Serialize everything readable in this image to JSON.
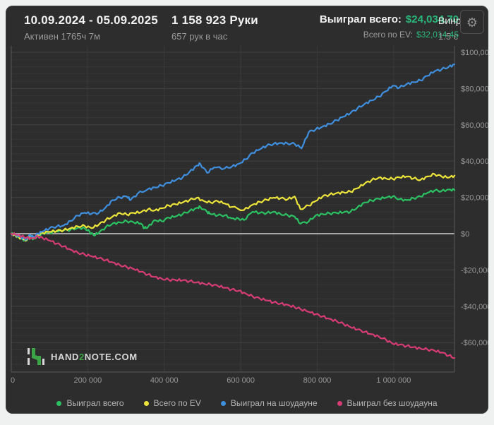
{
  "header": {
    "period": {
      "title": "10.09.2024 - 05.09.2025",
      "subtitle": "Активен 1765ч 7м"
    },
    "hands": {
      "title": "1 158 923 Руки",
      "subtitle": "657 рук в час"
    },
    "totals": {
      "won_label": "Выиграл всего:",
      "won_value": "$24,034.70",
      "ev_label": "Всего по EV:",
      "ev_value": "$32,014.45"
    },
    "winrate": {
      "label": "Винр",
      "value": "1.5 с"
    },
    "gear_icon": "⚙"
  },
  "logo": {
    "pre": "HAND",
    "accent": "2",
    "post": "NOTE.COM"
  },
  "colors": {
    "panel_bg": "#2d2d2d",
    "money_green": "#2ab87c",
    "grid_minor": "#353535",
    "grid_major": "#414141",
    "grid_vertical": "#3b3b3b",
    "zero_line": "#cfcfcf",
    "frame": "#565656",
    "axis_text": "#989898"
  },
  "chart_data": {
    "type": "line",
    "title": "",
    "xlabel": "hands",
    "ylabel": "USD",
    "x_unit": "hands",
    "values_unit": "USD_thousands",
    "x_max": 1159,
    "ylim": [
      -76,
      100
    ],
    "grid": {
      "y_minor_step": 4,
      "y_major_step": 20,
      "vertical_at_x_ticks": true
    },
    "legend_position": "bottom-center",
    "x_ticks": [
      {
        "v": 0,
        "label": "0"
      },
      {
        "v": 200,
        "label": "200 000"
      },
      {
        "v": 400,
        "label": "400 000"
      },
      {
        "v": 600,
        "label": "600 000"
      },
      {
        "v": 800,
        "label": "800 000"
      },
      {
        "v": 1000,
        "label": "1 000 000"
      }
    ],
    "y_ticks": [
      {
        "v": 100,
        "label": "$100,000"
      },
      {
        "v": 80,
        "label": "$80,000"
      },
      {
        "v": 60,
        "label": "$60,000"
      },
      {
        "v": 40,
        "label": "$40,000"
      },
      {
        "v": 20,
        "label": "$20,000"
      },
      {
        "v": 0,
        "label": "$0"
      },
      {
        "v": -20,
        "label": "-$20,000"
      },
      {
        "v": -40,
        "label": "-$40,000"
      },
      {
        "v": -60,
        "label": "-$60,000"
      }
    ],
    "series": [
      {
        "name": "Выиграл всего",
        "id": "won-total",
        "color": "#2bc162",
        "end_value_usd": 24034.7,
        "points": [
          [
            0,
            0
          ],
          [
            10,
            -0.8
          ],
          [
            20,
            -2
          ],
          [
            30,
            -3.2
          ],
          [
            40,
            -3.8
          ],
          [
            48,
            -1.2
          ],
          [
            58,
            -3
          ],
          [
            70,
            -1
          ],
          [
            82,
            0.2
          ],
          [
            100,
            0.6
          ],
          [
            119,
            1.2
          ],
          [
            137,
            1.8
          ],
          [
            155,
            2.2
          ],
          [
            174,
            3.2
          ],
          [
            192,
            3
          ],
          [
            205,
            1
          ],
          [
            216,
            -1
          ],
          [
            229,
            0.5
          ],
          [
            247,
            3.6
          ],
          [
            265,
            5.6
          ],
          [
            284,
            6.2
          ],
          [
            302,
            6.9
          ],
          [
            320,
            6.2
          ],
          [
            339,
            5.6
          ],
          [
            348,
            3
          ],
          [
            357,
            3.6
          ],
          [
            375,
            7.5
          ],
          [
            393,
            6.9
          ],
          [
            412,
            8.8
          ],
          [
            430,
            9.5
          ],
          [
            448,
            10.8
          ],
          [
            466,
            12.5
          ],
          [
            485,
            14.2
          ],
          [
            494,
            14.8
          ],
          [
            512,
            12
          ],
          [
            521,
            10.8
          ],
          [
            540,
            10.1
          ],
          [
            558,
            10.1
          ],
          [
            576,
            8.5
          ],
          [
            595,
            8.2
          ],
          [
            608,
            7.5
          ],
          [
            631,
            12.1
          ],
          [
            650,
            11.4
          ],
          [
            668,
            11.4
          ],
          [
            686,
            12.1
          ],
          [
            704,
            10.8
          ],
          [
            723,
            10.1
          ],
          [
            741,
            9.4
          ],
          [
            756,
            5.5
          ],
          [
            778,
            6.8
          ],
          [
            796,
            10.1
          ],
          [
            814,
            10.8
          ],
          [
            832,
            11.2
          ],
          [
            851,
            11.4
          ],
          [
            869,
            11.8
          ],
          [
            887,
            12.1
          ],
          [
            905,
            14.5
          ],
          [
            924,
            17.2
          ],
          [
            942,
            18.3
          ],
          [
            961,
            19.2
          ],
          [
            980,
            19.9
          ],
          [
            997,
            20.5
          ],
          [
            1015,
            19
          ],
          [
            1034,
            18.5
          ],
          [
            1052,
            19.5
          ],
          [
            1070,
            20.5
          ],
          [
            1088,
            22.5
          ],
          [
            1107,
            23.8
          ],
          [
            1125,
            23.5
          ],
          [
            1144,
            24.4
          ],
          [
            1159,
            24.0
          ]
        ]
      },
      {
        "name": "Всего по EV",
        "id": "ev-total",
        "color": "#ece43a",
        "end_value_usd": 32014.45,
        "points": [
          [
            0,
            0
          ],
          [
            10,
            -0.8
          ],
          [
            20,
            -2
          ],
          [
            30,
            -3
          ],
          [
            40,
            -3.5
          ],
          [
            48,
            -1
          ],
          [
            58,
            -2.5
          ],
          [
            70,
            -0.5
          ],
          [
            82,
            0.5
          ],
          [
            100,
            1
          ],
          [
            119,
            1.5
          ],
          [
            137,
            2
          ],
          [
            155,
            3
          ],
          [
            174,
            4
          ],
          [
            192,
            4.3
          ],
          [
            210,
            3
          ],
          [
            229,
            5
          ],
          [
            247,
            7.5
          ],
          [
            265,
            9.5
          ],
          [
            284,
            11.4
          ],
          [
            302,
            10.5
          ],
          [
            320,
            11.4
          ],
          [
            339,
            11.8
          ],
          [
            357,
            13.4
          ],
          [
            375,
            12.8
          ],
          [
            393,
            14
          ],
          [
            412,
            15.5
          ],
          [
            430,
            16.2
          ],
          [
            448,
            17.2
          ],
          [
            466,
            18.5
          ],
          [
            485,
            19.8
          ],
          [
            503,
            18
          ],
          [
            521,
            17.2
          ],
          [
            540,
            17.9
          ],
          [
            558,
            16.6
          ],
          [
            576,
            14.7
          ],
          [
            608,
            13
          ],
          [
            631,
            16
          ],
          [
            650,
            17.5
          ],
          [
            668,
            18.7
          ],
          [
            686,
            19.8
          ],
          [
            704,
            19.5
          ],
          [
            723,
            19
          ],
          [
            741,
            20.5
          ],
          [
            756,
            13.5
          ],
          [
            778,
            15.5
          ],
          [
            796,
            18
          ],
          [
            814,
            20.5
          ],
          [
            832,
            21.5
          ],
          [
            851,
            22.4
          ],
          [
            869,
            22.8
          ],
          [
            887,
            23.1
          ],
          [
            905,
            25
          ],
          [
            924,
            27.6
          ],
          [
            942,
            29.5
          ],
          [
            961,
            30.9
          ],
          [
            980,
            30.4
          ],
          [
            997,
            30.2
          ],
          [
            1015,
            31
          ],
          [
            1034,
            31.5
          ],
          [
            1052,
            30.5
          ],
          [
            1070,
            29.6
          ],
          [
            1088,
            31.5
          ],
          [
            1107,
            32.8
          ],
          [
            1125,
            31.5
          ],
          [
            1144,
            30.9
          ],
          [
            1159,
            32.0
          ]
        ]
      },
      {
        "name": "Выиграл на шоудауне",
        "id": "won-showdown",
        "color": "#3f8fdf",
        "points": [
          [
            0,
            0
          ],
          [
            10,
            -0.5
          ],
          [
            20,
            -1.5
          ],
          [
            30,
            -2.5
          ],
          [
            40,
            -3
          ],
          [
            48,
            -0.5
          ],
          [
            58,
            -2
          ],
          [
            70,
            0
          ],
          [
            82,
            1.2
          ],
          [
            100,
            3
          ],
          [
            119,
            4
          ],
          [
            137,
            4.5
          ],
          [
            155,
            7
          ],
          [
            174,
            10
          ],
          [
            192,
            11.5
          ],
          [
            210,
            11
          ],
          [
            229,
            11.5
          ],
          [
            247,
            14.5
          ],
          [
            265,
            18.5
          ],
          [
            284,
            20
          ],
          [
            302,
            20.5
          ],
          [
            312,
            18.5
          ],
          [
            330,
            22
          ],
          [
            357,
            24.5
          ],
          [
            375,
            25.5
          ],
          [
            393,
            26.5
          ],
          [
            412,
            28
          ],
          [
            430,
            29.5
          ],
          [
            448,
            31
          ],
          [
            466,
            34
          ],
          [
            485,
            37.5
          ],
          [
            494,
            38.5
          ],
          [
            512,
            33.5
          ],
          [
            530,
            36.5
          ],
          [
            558,
            36
          ],
          [
            577,
            37
          ],
          [
            595,
            38.5
          ],
          [
            613,
            41
          ],
          [
            631,
            44.5
          ],
          [
            650,
            46.5
          ],
          [
            668,
            48.5
          ],
          [
            686,
            49.5
          ],
          [
            704,
            50
          ],
          [
            722,
            49.7
          ],
          [
            741,
            49.5
          ],
          [
            759,
            47
          ],
          [
            778,
            56
          ],
          [
            796,
            57.5
          ],
          [
            814,
            59
          ],
          [
            832,
            60.5
          ],
          [
            851,
            62.5
          ],
          [
            869,
            64.5
          ],
          [
            887,
            66.5
          ],
          [
            905,
            69
          ],
          [
            924,
            71.5
          ],
          [
            942,
            73.5
          ],
          [
            961,
            75.5
          ],
          [
            980,
            78.5
          ],
          [
            997,
            81.5
          ],
          [
            1015,
            80.5
          ],
          [
            1034,
            82.5
          ],
          [
            1052,
            83.5
          ],
          [
            1070,
            84.5
          ],
          [
            1088,
            87
          ],
          [
            1107,
            89.5
          ],
          [
            1125,
            90.5
          ],
          [
            1144,
            92
          ],
          [
            1159,
            93.3
          ]
        ]
      },
      {
        "name": "Выиграл без шоудауна",
        "id": "won-nonshowdown",
        "color": "#d63c74",
        "points": [
          [
            0,
            0
          ],
          [
            15,
            -0.6
          ],
          [
            27,
            -1.5
          ],
          [
            40,
            -2.2
          ],
          [
            55,
            -2.6
          ],
          [
            70,
            -1.5
          ],
          [
            82,
            -2.4
          ],
          [
            100,
            -3.8
          ],
          [
            119,
            -5.5
          ],
          [
            137,
            -7
          ],
          [
            155,
            -8.8
          ],
          [
            174,
            -10.5
          ],
          [
            192,
            -11.5
          ],
          [
            210,
            -12.5
          ],
          [
            229,
            -13.5
          ],
          [
            247,
            -14.5
          ],
          [
            265,
            -15.8
          ],
          [
            284,
            -17.3
          ],
          [
            302,
            -18.4
          ],
          [
            320,
            -19.5
          ],
          [
            339,
            -21
          ],
          [
            357,
            -22.5
          ],
          [
            375,
            -23.8
          ],
          [
            393,
            -24.8
          ],
          [
            412,
            -25.4
          ],
          [
            430,
            -25.6
          ],
          [
            448,
            -25.7
          ],
          [
            466,
            -26.2
          ],
          [
            485,
            -26.8
          ],
          [
            503,
            -27.5
          ],
          [
            521,
            -28
          ],
          [
            540,
            -28.8
          ],
          [
            558,
            -29.8
          ],
          [
            576,
            -30.8
          ],
          [
            595,
            -31.4
          ],
          [
            613,
            -33
          ],
          [
            631,
            -34.5
          ],
          [
            650,
            -35.8
          ],
          [
            668,
            -36.8
          ],
          [
            686,
            -37.9
          ],
          [
            704,
            -38.5
          ],
          [
            723,
            -39.2
          ],
          [
            741,
            -40.5
          ],
          [
            756,
            -41.5
          ],
          [
            778,
            -43.1
          ],
          [
            796,
            -44.4
          ],
          [
            814,
            -45.6
          ],
          [
            832,
            -46.9
          ],
          [
            851,
            -48.2
          ],
          [
            869,
            -49.8
          ],
          [
            887,
            -51.5
          ],
          [
            905,
            -52.8
          ],
          [
            924,
            -54.1
          ],
          [
            942,
            -55.4
          ],
          [
            961,
            -56.7
          ],
          [
            980,
            -58.5
          ],
          [
            997,
            -60.6
          ],
          [
            1015,
            -61.2
          ],
          [
            1034,
            -61.9
          ],
          [
            1052,
            -62.5
          ],
          [
            1070,
            -63.2
          ],
          [
            1088,
            -63.8
          ],
          [
            1107,
            -64.5
          ],
          [
            1125,
            -65.5
          ],
          [
            1144,
            -67.1
          ],
          [
            1159,
            -68.5
          ]
        ]
      }
    ]
  }
}
